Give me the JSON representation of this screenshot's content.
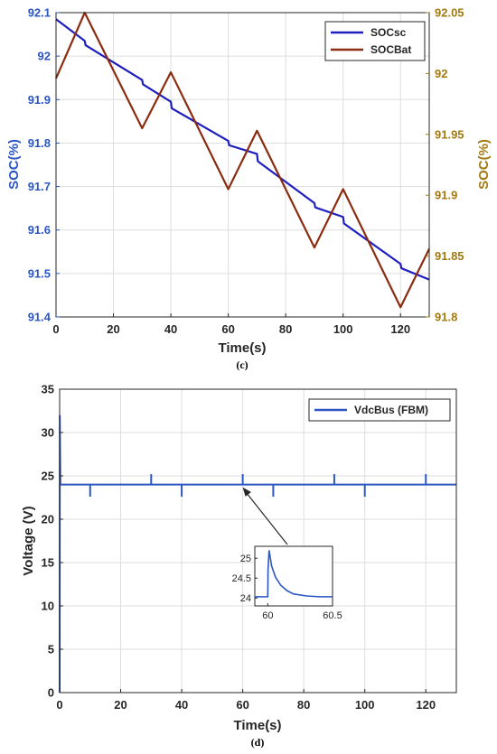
{
  "chart_data": [
    {
      "id": "c",
      "type": "line",
      "caption": "(c)",
      "xlabel": "Time(s)",
      "ylabel_left": "SOC(%)",
      "ylabel_right": "SOC(%)",
      "xlim": [
        0,
        130
      ],
      "ylim_left": [
        91.4,
        92.1
      ],
      "ylim_right": [
        91.8,
        92.05
      ],
      "xticks": [
        0,
        20,
        40,
        60,
        80,
        100,
        120
      ],
      "yticks_left": [
        "91.4",
        "91.5",
        "91.6",
        "91.7",
        "91.8",
        "91.9",
        "92",
        "92.1"
      ],
      "yticks_right": [
        "91.8",
        "91.85",
        "91.9",
        "91.95",
        "92",
        "92.05"
      ],
      "grid": true,
      "legend_position": "top-right",
      "series": [
        {
          "name": "SOCsc",
          "axis": "left",
          "color": "#1f1fbf",
          "x": [
            0,
            10,
            10.3,
            30,
            30.3,
            40,
            40.3,
            60,
            60.3,
            70,
            70.3,
            90,
            90.3,
            100,
            100.3,
            120,
            120.3,
            130
          ],
          "y": [
            92.085,
            92.035,
            92.025,
            91.945,
            91.935,
            91.895,
            91.88,
            91.805,
            91.795,
            91.775,
            91.758,
            91.662,
            91.652,
            91.63,
            91.615,
            91.522,
            91.512,
            91.486
          ]
        },
        {
          "name": "SOCBat",
          "axis": "right",
          "color": "#8b2c10",
          "x": [
            0,
            10,
            30,
            40,
            60,
            70,
            90,
            100,
            120,
            130
          ],
          "y": [
            91.996,
            92.05,
            91.955,
            92.001,
            91.905,
            91.953,
            91.857,
            91.905,
            91.808,
            91.856
          ]
        }
      ]
    },
    {
      "id": "d",
      "type": "line",
      "caption": "(d)",
      "xlabel": "Time(s)",
      "ylabel": "Voltage (V)",
      "xlim": [
        0,
        130
      ],
      "ylim": [
        0,
        35
      ],
      "xticks": [
        0,
        20,
        40,
        60,
        80,
        100,
        120
      ],
      "yticks": [
        0,
        5,
        10,
        15,
        20,
        25,
        30,
        35
      ],
      "grid": true,
      "legend_position": "top-right",
      "series": [
        {
          "name": "VdcBus (FBM)",
          "color": "#2b56c4",
          "baseline": 24,
          "startup_x": [
            0,
            0.05,
            0.25
          ],
          "startup_y": [
            0,
            32,
            24
          ],
          "spike_up_times": [
            30,
            60,
            90,
            120
          ],
          "spike_down_times": [
            10,
            40,
            70,
            100
          ],
          "spike_up_value": 25.2,
          "spike_down_value": 22.6
        }
      ],
      "inset": {
        "xlim": [
          59.9,
          60.5
        ],
        "ylim": [
          23.8,
          25.3
        ],
        "xticks": [
          "60",
          "60.5"
        ],
        "yticks": [
          "24",
          "24.5",
          "25"
        ],
        "x": [
          59.9,
          60.0,
          60.002,
          60.01,
          60.03,
          60.06,
          60.1,
          60.15,
          60.2,
          60.3,
          60.4,
          60.5
        ],
        "y": [
          24.03,
          24.03,
          24.7,
          25.2,
          24.8,
          24.52,
          24.32,
          24.18,
          24.1,
          24.05,
          24.03,
          24.03
        ],
        "pointer_target_time": 60,
        "pointer_target_voltage": 24
      }
    }
  ]
}
